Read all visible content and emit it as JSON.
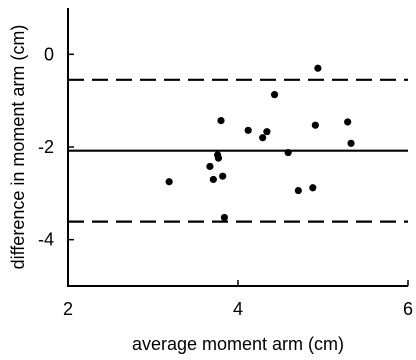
{
  "chart_data": {
    "type": "scatter",
    "title": "",
    "xlabel": "average moment arm (cm)",
    "ylabel": "difference in moment arm (cm)",
    "xlim": [
      2,
      6
    ],
    "ylim": [
      -5,
      1
    ],
    "x_ticks": [
      2,
      4,
      6
    ],
    "x_tick_labels": [
      "2",
      "4",
      "6"
    ],
    "y_ticks": [
      0,
      -2,
      -4
    ],
    "y_tick_labels": [
      "0",
      "-2",
      "-4"
    ],
    "grid": false,
    "legend": "none",
    "points": [
      {
        "x": 3.19,
        "y": -2.75
      },
      {
        "x": 3.67,
        "y": -2.42
      },
      {
        "x": 3.71,
        "y": -2.7
      },
      {
        "x": 3.76,
        "y": -2.17
      },
      {
        "x": 3.77,
        "y": -2.24
      },
      {
        "x": 3.8,
        "y": -1.43
      },
      {
        "x": 3.82,
        "y": -2.63
      },
      {
        "x": 3.84,
        "y": -3.52
      },
      {
        "x": 4.12,
        "y": -1.64
      },
      {
        "x": 4.29,
        "y": -1.8
      },
      {
        "x": 4.34,
        "y": -1.67
      },
      {
        "x": 4.43,
        "y": -0.87
      },
      {
        "x": 4.59,
        "y": -2.12
      },
      {
        "x": 4.71,
        "y": -2.94
      },
      {
        "x": 4.88,
        "y": -2.88
      },
      {
        "x": 4.91,
        "y": -1.53
      },
      {
        "x": 4.94,
        "y": -0.3
      },
      {
        "x": 5.29,
        "y": -1.46
      },
      {
        "x": 5.33,
        "y": -1.92
      }
    ],
    "reference_lines": [
      {
        "role": "mean",
        "y": -2.08,
        "style": "solid"
      },
      {
        "role": "upper-limit",
        "y": -0.55,
        "style": "dashed"
      },
      {
        "role": "lower-limit",
        "y": -3.61,
        "style": "dashed"
      }
    ],
    "colors": {
      "points": "#000000",
      "lines": "#000000",
      "axes": "#000000"
    }
  }
}
